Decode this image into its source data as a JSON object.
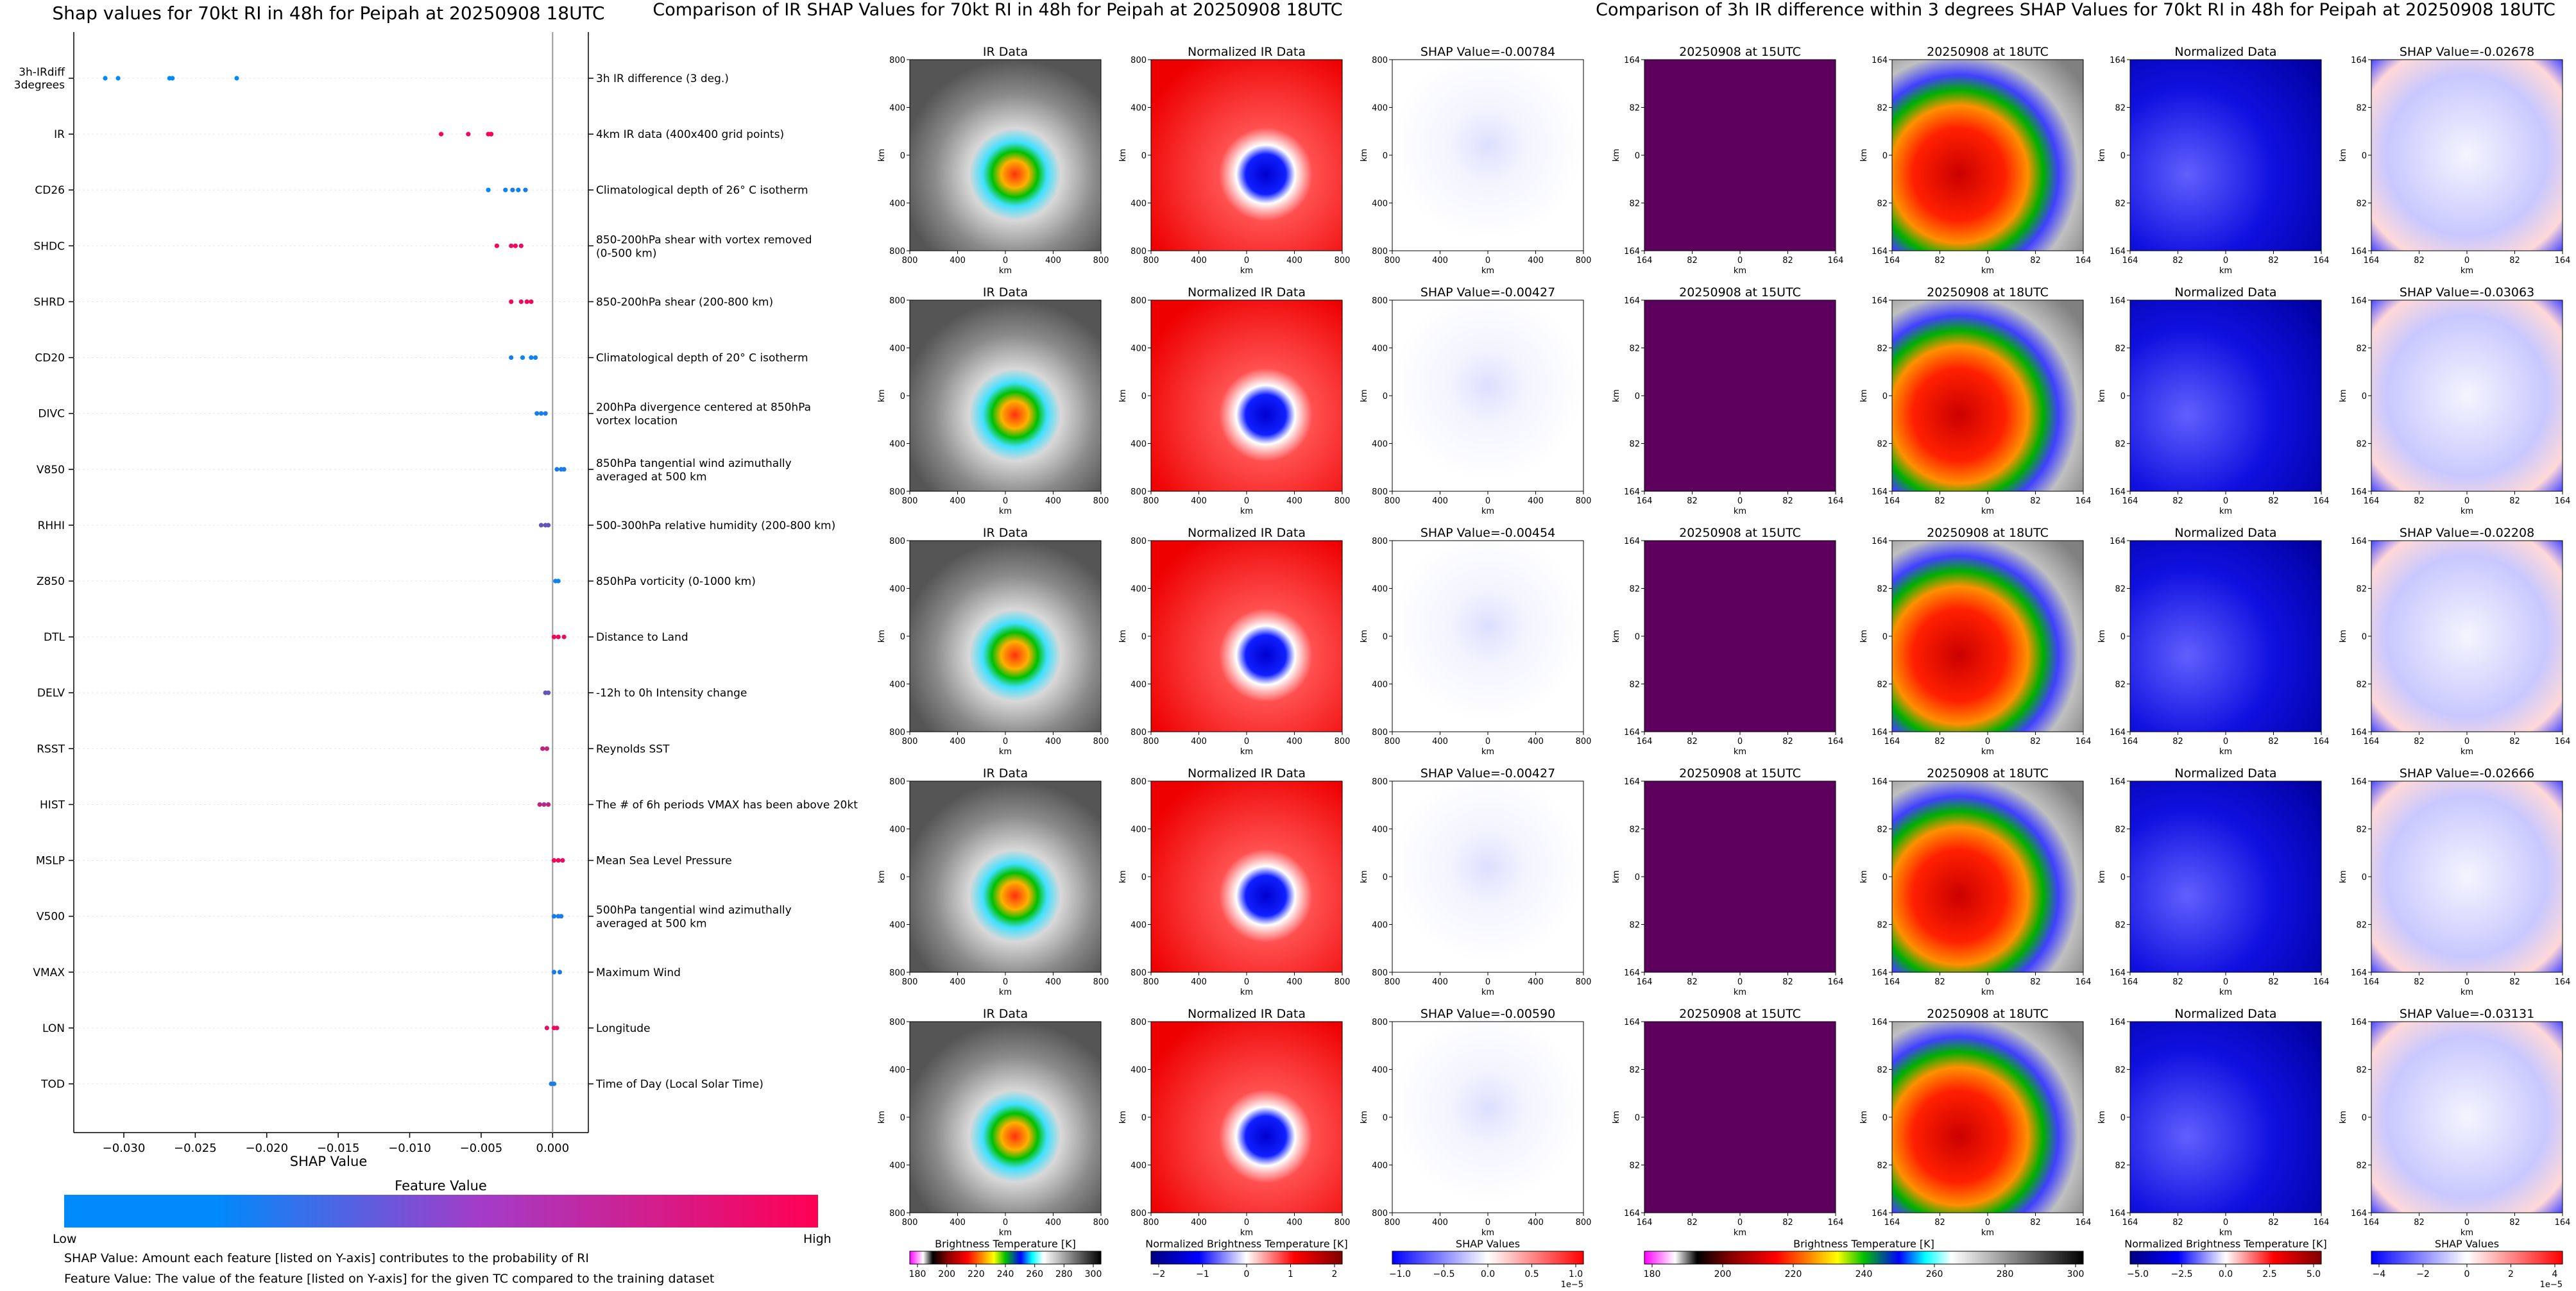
{
  "summary": {
    "title": "Shap values for 70kt RI in 48h for Peipah at 20250908 18UTC",
    "xlabel": "SHAP Value",
    "colorbar_title": "Feature Value",
    "colorbar_low": "Low",
    "colorbar_high": "High",
    "note1": "SHAP Value: Amount each feature [listed on Y-axis] contributes to the probability of RI",
    "note2": "Feature Value: The value of the feature [listed on Y-axis] for the given TC compared to the training dataset"
  },
  "ir_panel": {
    "title": "Comparison of IR SHAP Values for 70kt RI in 48h for Peipah at 20250908 18UTC",
    "col_titles": [
      "IR Data",
      "Normalized IR Data"
    ],
    "shap_titles": [
      "SHAP Value=-0.00784",
      "SHAP Value=-0.00427",
      "SHAP Value=-0.00454",
      "SHAP Value=-0.00427",
      "SHAP Value=-0.00590"
    ],
    "tick_labels": [
      "800",
      "400",
      "0",
      "400",
      "800"
    ],
    "axis_unit": "km",
    "colorbars": [
      {
        "label": "Brightness Temperature [K]",
        "ticks": [
          "180",
          "200",
          "220",
          "240",
          "260",
          "280",
          "300"
        ]
      },
      {
        "label": "Normalized Brightness Temperature [K]",
        "ticks": [
          "−2",
          "−1",
          "0",
          "1",
          "2"
        ]
      },
      {
        "label": "SHAP Values",
        "ticks": [
          "−1.0",
          "−0.5",
          "0.0",
          "0.5",
          "1.0"
        ],
        "exponent": "1e−5"
      }
    ]
  },
  "diff_panel": {
    "title": "Comparison of 3h IR difference within 3 degrees SHAP Values for 70kt RI in 48h for Peipah at 20250908 18UTC",
    "col_titles": [
      "20250908 at 15UTC",
      "20250908 at 18UTC",
      "Normalized Data"
    ],
    "shap_titles": [
      "SHAP Value=-0.02678",
      "SHAP Value=-0.03063",
      "SHAP Value=-0.02208",
      "SHAP Value=-0.02666",
      "SHAP Value=-0.03131"
    ],
    "tick_labels": [
      "164",
      "82",
      "0",
      "82",
      "164"
    ],
    "axis_unit": "km",
    "colorbars": [
      {
        "label": "Brightness Temperature [K]",
        "ticks": [
          "180",
          "200",
          "220",
          "240",
          "260",
          "280",
          "300"
        ]
      },
      {
        "label": "Normalized Brightness Temperature [K]",
        "ticks": [
          "−5.0",
          "−2.5",
          "0.0",
          "2.5",
          "5.0"
        ]
      },
      {
        "label": "SHAP Values",
        "ticks": [
          "−4",
          "−2",
          "0",
          "2",
          "4"
        ],
        "exponent": "1e−5"
      }
    ]
  },
  "colors": {
    "low": "#008afb",
    "high": "#ff0053",
    "dark_purple": "#5e005e",
    "zero_line": "#999999"
  },
  "chart_data": {
    "type": "scatter",
    "title": "Shap values for 70kt RI in 48h for Peipah at 20250908 18UTC",
    "xlabel": "SHAP Value",
    "ylabel": "",
    "xlim": [
      -0.0335,
      0.0025
    ],
    "xticks": [
      -0.03,
      -0.025,
      -0.02,
      -0.015,
      -0.01,
      -0.005,
      0.0
    ],
    "xtick_labels": [
      "−0.030",
      "−0.025",
      "−0.020",
      "−0.015",
      "−0.010",
      "−0.005",
      "0.000"
    ],
    "features": [
      {
        "code": "3h-IRdiff 3degrees",
        "desc": "3h IR difference (3 deg.)",
        "points": [
          [
            -0.0313,
            0.0
          ],
          [
            -0.0304,
            0.0
          ],
          [
            -0.0268,
            0.0
          ],
          [
            -0.0266,
            0.0
          ],
          [
            -0.0221,
            0.0
          ]
        ]
      },
      {
        "code": "IR",
        "desc": "4km IR data (400x400 grid points)",
        "points": [
          [
            -0.0078,
            1.0
          ],
          [
            -0.0059,
            0.9
          ],
          [
            -0.0045,
            0.95
          ],
          [
            -0.0043,
            0.95
          ],
          [
            -0.0043,
            1.0
          ]
        ]
      },
      {
        "code": "CD26",
        "desc": "Climatological depth of 26° C isotherm",
        "points": [
          [
            -0.0045,
            0.0
          ],
          [
            -0.0033,
            0.05
          ],
          [
            -0.0028,
            0.1
          ],
          [
            -0.0024,
            0.05
          ],
          [
            -0.0019,
            0.1
          ]
        ]
      },
      {
        "code": "SHDC",
        "desc": "850-200hPa shear with vortex removed (0-500 km)",
        "points": [
          [
            -0.0039,
            0.95
          ],
          [
            -0.0029,
            0.9
          ],
          [
            -0.0026,
            0.95
          ],
          [
            -0.0022,
            0.9
          ]
        ]
      },
      {
        "code": "SHRD",
        "desc": "850-200hPa shear (200-800 km)",
        "points": [
          [
            -0.0029,
            0.95
          ],
          [
            -0.0022,
            0.9
          ],
          [
            -0.0018,
            0.95
          ],
          [
            -0.0015,
            0.95
          ]
        ]
      },
      {
        "code": "CD20",
        "desc": "Climatological depth of 20° C isotherm",
        "points": [
          [
            -0.0029,
            0.1
          ],
          [
            -0.0021,
            0.05
          ],
          [
            -0.0015,
            0.05
          ],
          [
            -0.0012,
            0.05
          ]
        ]
      },
      {
        "code": "DIVC",
        "desc": "200hPa divergence centered at 850hPa vortex location",
        "points": [
          [
            -0.0011,
            0.1
          ],
          [
            -0.0008,
            0.1
          ],
          [
            -0.0005,
            0.1
          ]
        ]
      },
      {
        "code": "V850",
        "desc": "850hPa tangential wind azimuthally averaged at 500 km",
        "points": [
          [
            0.0003,
            0.1
          ],
          [
            0.0006,
            0.1
          ],
          [
            0.0008,
            0.1
          ]
        ]
      },
      {
        "code": "RHHI",
        "desc": "500-300hPa relative humidity (200-800 km)",
        "points": [
          [
            -0.0008,
            0.4
          ],
          [
            -0.0005,
            0.4
          ],
          [
            -0.0003,
            0.4
          ]
        ]
      },
      {
        "code": "Z850",
        "desc": "850hPa vorticity (0-1000 km)",
        "points": [
          [
            0.0002,
            0.05
          ],
          [
            0.0004,
            0.05
          ]
        ]
      },
      {
        "code": "DTL",
        "desc": "Distance to Land",
        "points": [
          [
            0.0001,
            0.95
          ],
          [
            0.0004,
            0.95
          ],
          [
            0.0008,
            0.9
          ]
        ]
      },
      {
        "code": "DELV",
        "desc": "-12h to 0h Intensity change",
        "points": [
          [
            -0.0005,
            0.4
          ],
          [
            -0.0003,
            0.4
          ]
        ]
      },
      {
        "code": "RSST",
        "desc": "Reynolds SST",
        "points": [
          [
            -0.0007,
            0.75
          ],
          [
            -0.0004,
            0.75
          ]
        ]
      },
      {
        "code": "HIST",
        "desc": "The # of 6h periods VMAX has been above 20kt",
        "points": [
          [
            -0.0009,
            0.75
          ],
          [
            -0.0006,
            0.7
          ],
          [
            -0.0003,
            0.75
          ]
        ]
      },
      {
        "code": "MSLP",
        "desc": "Mean Sea Level Pressure",
        "points": [
          [
            0.0001,
            0.95
          ],
          [
            0.0004,
            0.95
          ],
          [
            0.0007,
            0.9
          ]
        ]
      },
      {
        "code": "V500",
        "desc": "500hPa tangential wind azimuthally averaged at 500 km",
        "points": [
          [
            0.0001,
            0.1
          ],
          [
            0.0004,
            0.1
          ],
          [
            0.0006,
            0.1
          ]
        ]
      },
      {
        "code": "VMAX",
        "desc": "Maximum Wind",
        "points": [
          [
            0.0001,
            0.1
          ],
          [
            0.0005,
            0.1
          ]
        ]
      },
      {
        "code": "LON",
        "desc": "Longitude",
        "points": [
          [
            -0.0004,
            0.85
          ],
          [
            0.0001,
            0.95
          ],
          [
            0.0003,
            0.9
          ]
        ]
      },
      {
        "code": "TOD",
        "desc": "Time of Day (Local Solar Time)",
        "points": [
          [
            -0.0001,
            0.1
          ],
          [
            0.0001,
            0.1
          ]
        ]
      }
    ]
  }
}
